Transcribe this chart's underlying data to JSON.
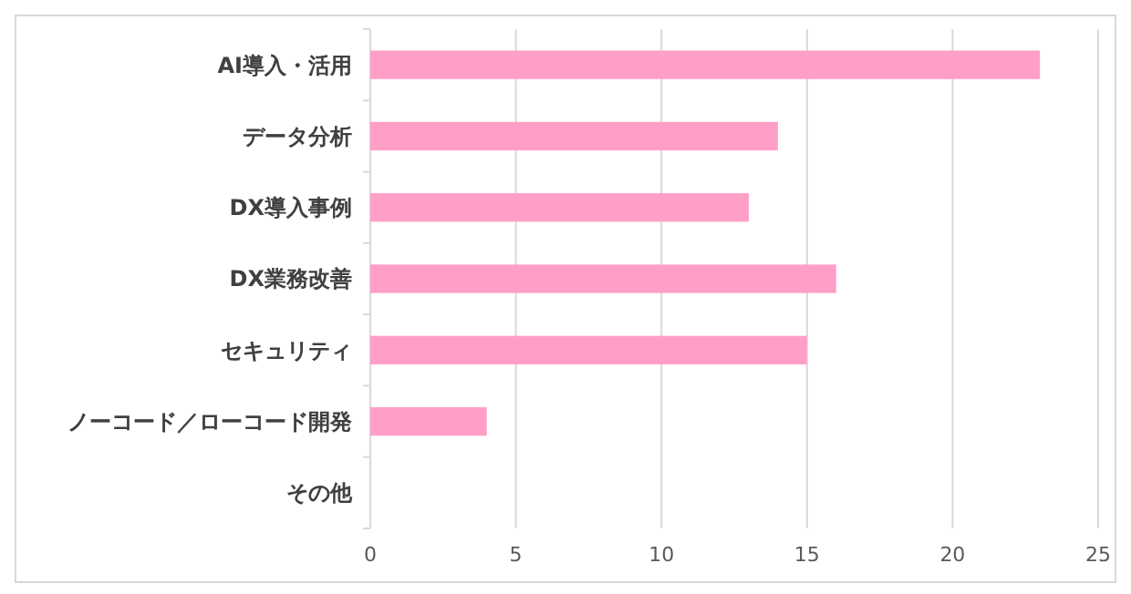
{
  "chart_data": {
    "type": "bar",
    "orientation": "horizontal",
    "categories": [
      "AI導入・活用",
      "データ分析",
      "DX導入事例",
      "DX業務改善",
      "セキュリティ",
      "ノーコード／ローコード開発",
      "その他"
    ],
    "values": [
      23,
      14,
      13,
      16,
      15,
      4,
      0
    ],
    "color": "#ff9fc8",
    "xlim": [
      0,
      25
    ],
    "xticks": [
      0,
      5,
      10,
      15,
      20,
      25
    ],
    "grid": "x"
  }
}
